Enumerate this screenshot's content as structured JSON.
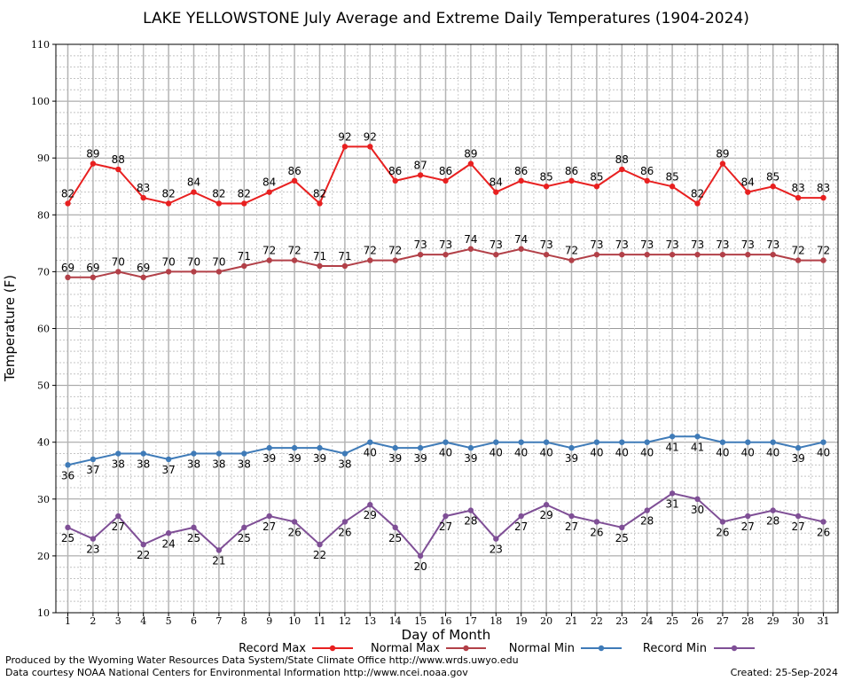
{
  "title": "LAKE YELLOWSTONE July Average and Extreme Daily Temperatures (1904-2024)",
  "footer": {
    "line1": "Produced by the Wyoming Water Resources Data System/State Climate Office http://www.wrds.uwyo.edu",
    "line2": "Data courtesy NOAA National Centers for Environmental Information http://www.ncei.noaa.gov",
    "created": "Created:  25-Sep-2024"
  },
  "chart_data": {
    "type": "line",
    "title": "LAKE YELLOWSTONE July Average and Extreme Daily Temperatures (1904-2024)",
    "xlabel": "Day of Month",
    "ylabel": "Temperature (F)",
    "xlim": [
      1,
      31
    ],
    "ylim": [
      10,
      110
    ],
    "yticks": [
      10,
      20,
      30,
      40,
      50,
      60,
      70,
      80,
      90,
      100,
      110
    ],
    "grid": true,
    "legend_position": "bottom",
    "x": [
      1,
      2,
      3,
      4,
      5,
      6,
      7,
      8,
      9,
      10,
      11,
      12,
      13,
      14,
      15,
      16,
      17,
      18,
      19,
      20,
      21,
      22,
      23,
      24,
      25,
      26,
      27,
      28,
      29,
      30,
      31
    ],
    "series": [
      {
        "name": "Record Max",
        "color": "#e82020",
        "label_position": "above",
        "values": [
          82,
          89,
          88,
          83,
          82,
          84,
          82,
          82,
          84,
          86,
          82,
          92,
          92,
          86,
          87,
          86,
          89,
          84,
          86,
          85,
          86,
          85,
          88,
          86,
          85,
          82,
          89,
          84,
          85,
          83,
          83
        ]
      },
      {
        "name": "Normal Max",
        "color": "#b24048",
        "label_position": "above",
        "values": [
          69,
          69,
          70,
          69,
          70,
          70,
          70,
          71,
          72,
          72,
          71,
          71,
          72,
          72,
          73,
          73,
          74,
          73,
          74,
          73,
          72,
          73,
          73,
          73,
          73,
          73,
          73,
          73,
          73,
          72,
          72
        ]
      },
      {
        "name": "Normal Min",
        "color": "#3f7bb8",
        "label_position": "below",
        "values": [
          36,
          37,
          38,
          38,
          37,
          38,
          38,
          38,
          39,
          39,
          39,
          38,
          40,
          39,
          39,
          40,
          39,
          40,
          40,
          40,
          39,
          40,
          40,
          40,
          41,
          41,
          40,
          40,
          40,
          39,
          40
        ]
      },
      {
        "name": "Record Min",
        "color": "#7f4f96",
        "label_position": "below",
        "values": [
          25,
          23,
          27,
          22,
          24,
          25,
          21,
          25,
          27,
          26,
          22,
          26,
          29,
          25,
          20,
          27,
          28,
          23,
          27,
          29,
          27,
          26,
          25,
          28,
          31,
          30,
          26,
          27,
          28,
          27,
          26
        ]
      }
    ]
  }
}
